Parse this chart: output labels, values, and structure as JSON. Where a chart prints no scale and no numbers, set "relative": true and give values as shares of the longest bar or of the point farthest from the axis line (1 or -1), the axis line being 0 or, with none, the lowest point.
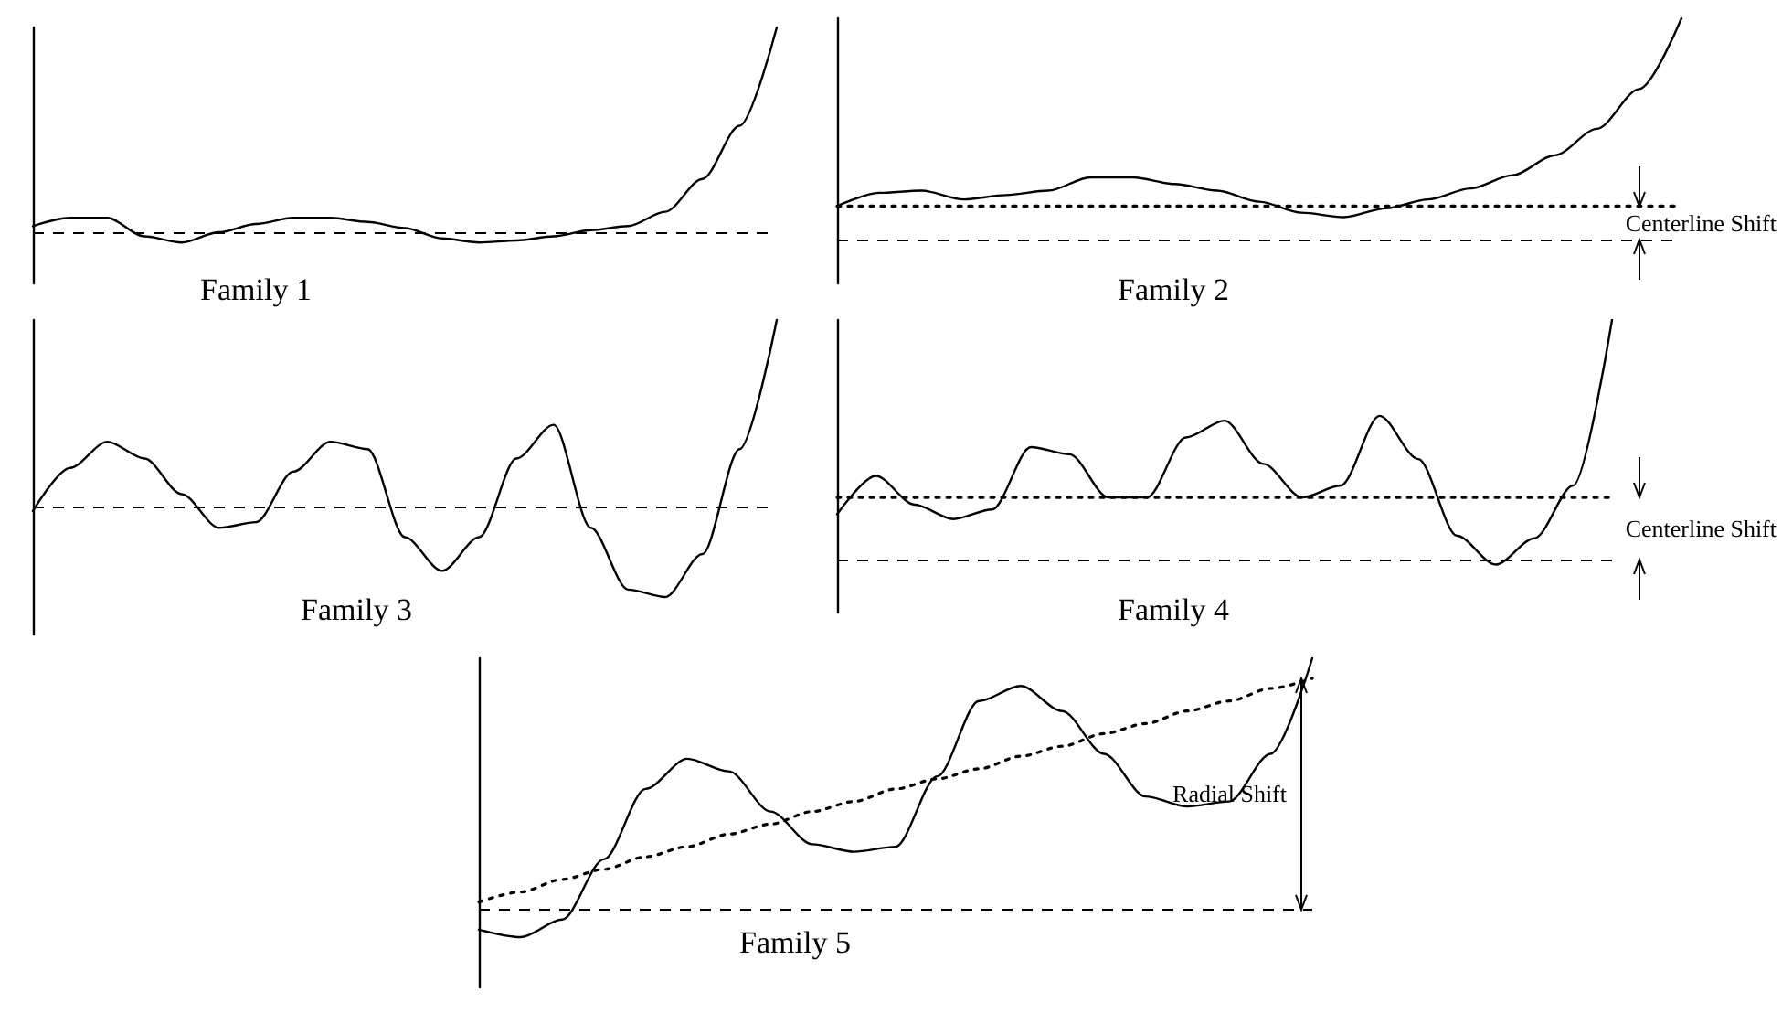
{
  "chart_data": [
    {
      "type": "line",
      "title": "Family 1",
      "relative": true,
      "marker": "none",
      "line_style": "solid",
      "categories": [
        null,
        null,
        null,
        null,
        null,
        null,
        null,
        null,
        null,
        null,
        null,
        null,
        null,
        null,
        null,
        null,
        null,
        null,
        null,
        null,
        null
      ],
      "series": [
        {
          "color": "#000000",
          "values": [
            0.03,
            0.07,
            0.07,
            -0.02,
            -0.05,
            0,
            0.04,
            0.07,
            0.07,
            0.05,
            0.02,
            -0.03,
            -0.05,
            -0.04,
            -0.02,
            0.01,
            0.03,
            0.1,
            0.26,
            0.52,
            1
          ]
        }
      ],
      "ref_lines": [
        {
          "axis": "y",
          "value": 0,
          "line_style": "dashed",
          "color": "#000000"
        }
      ]
    },
    {
      "type": "line",
      "title": "Family 2",
      "relative": true,
      "marker": "none",
      "line_style": "solid",
      "categories": [
        null,
        null,
        null,
        null,
        null,
        null,
        null,
        null,
        null,
        null,
        null,
        null,
        null,
        null,
        null,
        null,
        null,
        null,
        null,
        null,
        null
      ],
      "series": [
        {
          "color": "#000000",
          "values": [
            0.15,
            0.21,
            0.22,
            0.18,
            0.2,
            0.22,
            0.28,
            0.28,
            0.25,
            0.22,
            0.17,
            0.12,
            0.1,
            0.14,
            0.18,
            0.23,
            0.29,
            0.38,
            0.5,
            0.68,
            1
          ]
        },
        {
          "color": "#000000",
          "line_style": "dotted",
          "values": [
            0.15,
            0.15,
            0.15,
            0.15,
            0.15,
            0.15,
            0.15,
            0.15,
            0.15,
            0.15,
            0.15,
            0.15,
            0.15,
            0.15,
            0.15,
            0.15,
            0.15,
            0.15,
            0.15,
            0.15,
            0.15
          ]
        }
      ],
      "ref_lines": [
        {
          "axis": "y",
          "value": 0,
          "line_style": "dashed",
          "color": "#000000"
        }
      ],
      "annotations": [
        "Centerline Shift"
      ]
    },
    {
      "type": "line",
      "title": "Family 3",
      "relative": true,
      "marker": "none",
      "line_style": "solid",
      "categories": [
        null,
        null,
        null,
        null,
        null,
        null,
        null,
        null,
        null,
        null,
        null,
        null,
        null,
        null,
        null,
        null,
        null,
        null,
        null,
        null,
        null
      ],
      "series": [
        {
          "color": "#000000",
          "values": [
            -0.02,
            0.21,
            0.35,
            0.26,
            0.07,
            -0.11,
            -0.08,
            0.19,
            0.35,
            0.31,
            -0.16,
            -0.34,
            -0.16,
            0.26,
            0.44,
            -0.11,
            -0.44,
            -0.48,
            -0.25,
            0.31,
            1
          ]
        }
      ],
      "ref_lines": [
        {
          "axis": "y",
          "value": 0,
          "line_style": "dashed",
          "color": "#000000"
        }
      ]
    },
    {
      "type": "line",
      "title": "Family 4",
      "relative": true,
      "marker": "none",
      "line_style": "solid",
      "categories": [
        null,
        null,
        null,
        null,
        null,
        null,
        null,
        null,
        null,
        null,
        null,
        null,
        null,
        null,
        null,
        null,
        null,
        null,
        null,
        null,
        null
      ],
      "series": [
        {
          "color": "#000000",
          "values": [
            0.19,
            0.35,
            0.23,
            0.17,
            0.21,
            0.47,
            0.44,
            0.26,
            0.26,
            0.51,
            0.58,
            0.4,
            0.26,
            0.31,
            0.6,
            0.42,
            0.1,
            -0.02,
            0.09,
            0.31,
            1
          ]
        },
        {
          "color": "#000000",
          "line_style": "dotted",
          "values": [
            0.26,
            0.26,
            0.26,
            0.26,
            0.26,
            0.26,
            0.26,
            0.26,
            0.26,
            0.26,
            0.26,
            0.26,
            0.26,
            0.26,
            0.26,
            0.26,
            0.26,
            0.26,
            0.26,
            0.26,
            0.26
          ]
        }
      ],
      "ref_lines": [
        {
          "axis": "y",
          "value": 0,
          "line_style": "dashed",
          "color": "#000000"
        }
      ],
      "annotations": [
        "Centerline Shift"
      ]
    },
    {
      "type": "line",
      "title": "Family 5",
      "relative": true,
      "marker": "none",
      "line_style": "solid",
      "categories": [
        null,
        null,
        null,
        null,
        null,
        null,
        null,
        null,
        null,
        null,
        null,
        null,
        null,
        null,
        null,
        null,
        null,
        null,
        null,
        null,
        null
      ],
      "series": [
        {
          "color": "#000000",
          "values": [
            -0.08,
            -0.11,
            -0.04,
            0.2,
            0.48,
            0.6,
            0.55,
            0.39,
            0.26,
            0.23,
            0.25,
            0.53,
            0.83,
            0.89,
            0.79,
            0.62,
            0.45,
            0.41,
            0.43,
            0.62,
            1
          ]
        },
        {
          "color": "#000000",
          "line_style": "dotted",
          "values": [
            0.03,
            0.07,
            0.12,
            0.16,
            0.21,
            0.25,
            0.3,
            0.34,
            0.39,
            0.43,
            0.48,
            0.52,
            0.56,
            0.61,
            0.65,
            0.7,
            0.74,
            0.79,
            0.83,
            0.88,
            0.92
          ]
        }
      ],
      "ref_lines": [
        {
          "axis": "y",
          "value": 0,
          "line_style": "dashed",
          "color": "#000000"
        }
      ],
      "annotations": [
        "Radial Shift"
      ]
    }
  ]
}
